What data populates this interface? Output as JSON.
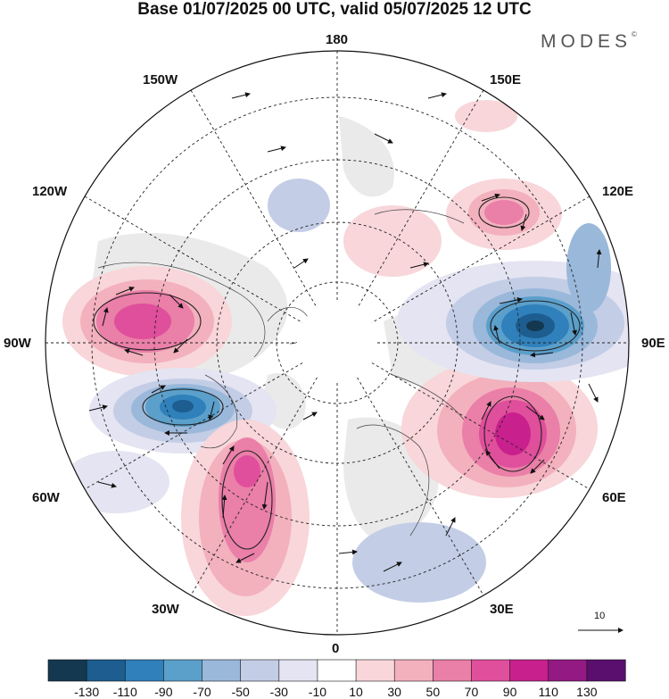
{
  "header": {
    "title": "Base 01/07/2025 00 UTC, valid 05/07/2025 12 UTC",
    "logo_text": "MODES",
    "logo_mark": "©"
  },
  "map": {
    "projection": "north-polar-stereographic",
    "longitude_labels": {
      "top": "180",
      "top_left": "150W",
      "top_right": "150E",
      "upper_left": "120W",
      "upper_right": "120E",
      "left": "90W",
      "right": "90E",
      "lower_left": "60W",
      "lower_right": "60E",
      "bottom_left": "30W",
      "bottom_right": "30E",
      "bottom": "0"
    },
    "reference_vector": "10",
    "anomaly_centers": [
      {
        "lon_label": "near 90W-120W",
        "sign": "positive",
        "peak": 90
      },
      {
        "lon_label": "near 60W-90W",
        "sign": "negative",
        "peak": -110
      },
      {
        "lon_label": "near 30W-60W",
        "sign": "positive",
        "peak": 90
      },
      {
        "lon_label": "near 60E-90E",
        "sign": "positive",
        "peak": 110
      },
      {
        "lon_label": "near 90E",
        "sign": "negative",
        "peak": -130
      },
      {
        "lon_label": "near 120E-150E",
        "sign": "positive",
        "peak": 70
      }
    ]
  },
  "colorbar": {
    "tick_labels": [
      "-130",
      "-110",
      "-90",
      "-70",
      "-50",
      "-30",
      "-10",
      "10",
      "30",
      "50",
      "70",
      "90",
      "110",
      "130"
    ],
    "colors": [
      "#14384f",
      "#1d5d8f",
      "#2f80bb",
      "#5b9fcb",
      "#9ab8da",
      "#c3cde6",
      "#e4e4f2",
      "#ffffff",
      "#f8d6d9",
      "#f3b0bd",
      "#ea7fa8",
      "#e04f9b",
      "#c8208c",
      "#931a83",
      "#5a0e6e"
    ]
  }
}
